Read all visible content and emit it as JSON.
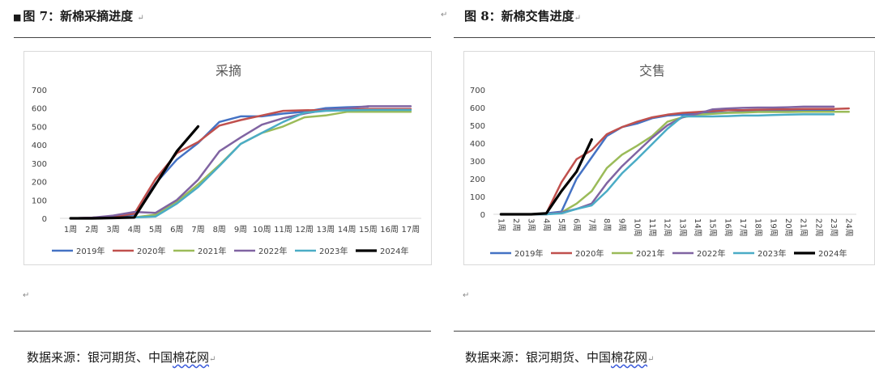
{
  "figures": [
    {
      "caption": "图 7：新棉采摘进度",
      "source_prefix": "数据来源：银河期货、中国",
      "source_underlined": "棉花网",
      "chart_data": {
        "type": "line",
        "title": "采摘",
        "categories": [
          "1周",
          "2周",
          "3周",
          "4周",
          "5周",
          "6周",
          "7周",
          "8周",
          "9周",
          "10周",
          "11周",
          "12周",
          "13周",
          "14周",
          "15周",
          "16周",
          "17周"
        ],
        "ylim": [
          0,
          700
        ],
        "yticks": [
          0,
          100,
          200,
          300,
          400,
          500,
          600,
          700
        ],
        "x_label_rotation": "horizontal",
        "grid": false,
        "legend_position": "bottom",
        "series": [
          {
            "name": "2019年",
            "color": "#4472c4",
            "values": [
              0,
              3,
              10,
              20,
              190,
              320,
              410,
              525,
              555,
              555,
              570,
              580,
              600,
              605,
              608,
              null,
              null
            ]
          },
          {
            "name": "2020年",
            "color": "#c0504d",
            "values": [
              0,
              3,
              10,
              25,
              215,
              355,
              415,
              505,
              535,
              560,
              585,
              588,
              590,
              592,
              595,
              595,
              595
            ]
          },
          {
            "name": "2021年",
            "color": "#9bbb59",
            "values": [
              0,
              0,
              2,
              5,
              20,
              90,
              185,
              290,
              405,
              465,
              500,
              550,
              560,
              580,
              580,
              580,
              580
            ]
          },
          {
            "name": "2022年",
            "color": "#8064a2",
            "values": [
              0,
              3,
              15,
              35,
              30,
              100,
              210,
              365,
              440,
              510,
              545,
              570,
              590,
              598,
              610,
              610,
              610
            ]
          },
          {
            "name": "2023年",
            "color": "#4bacc6",
            "values": [
              0,
              0,
              2,
              5,
              10,
              80,
              170,
              285,
              405,
              465,
              525,
              575,
              585,
              588,
              590,
              590,
              590
            ]
          },
          {
            "name": "2024年",
            "color": "#000000",
            "values": [
              0,
              0,
              2,
              5,
              185,
              365,
              500,
              null,
              null,
              null,
              null,
              null,
              null,
              null,
              null,
              null,
              null
            ]
          }
        ]
      }
    },
    {
      "caption": "图 8：新棉交售进度",
      "source_prefix": "数据来源：银河期货、中国",
      "source_underlined": "棉花网",
      "chart_data": {
        "type": "line",
        "title": "交售",
        "categories": [
          "1周",
          "2周",
          "3周",
          "4周",
          "5周",
          "6周",
          "7周",
          "8周",
          "9周",
          "10周",
          "11周",
          "12周",
          "13周",
          "14周",
          "15周",
          "16周",
          "17周",
          "18周",
          "19周",
          "20周",
          "21周",
          "22周",
          "23周",
          "24周"
        ],
        "ylim": [
          0,
          700
        ],
        "yticks": [
          0,
          100,
          200,
          300,
          400,
          500,
          600,
          700
        ],
        "x_label_rotation": "vertical",
        "grid": false,
        "legend_position": "bottom",
        "series": [
          {
            "name": "2019年",
            "color": "#4472c4",
            "values": [
              0,
              0,
              0,
              5,
              15,
              200,
              320,
              440,
              490,
              510,
              540,
              555,
              560,
              565,
              570,
              572,
              575,
              578,
              580,
              582,
              585,
              585,
              585,
              null
            ]
          },
          {
            "name": "2020年",
            "color": "#c0504d",
            "values": [
              0,
              0,
              0,
              5,
              180,
              310,
              360,
              450,
              490,
              520,
              545,
              560,
              570,
              575,
              580,
              585,
              585,
              588,
              590,
              590,
              592,
              592,
              592,
              595
            ]
          },
          {
            "name": "2021年",
            "color": "#9bbb59",
            "values": [
              0,
              0,
              0,
              0,
              10,
              60,
              130,
              260,
              335,
              385,
              440,
              520,
              545,
              560,
              565,
              570,
              572,
              575,
              575,
              575,
              576,
              576,
              576,
              576
            ]
          },
          {
            "name": "2022年",
            "color": "#8064a2",
            "values": [
              0,
              0,
              0,
              0,
              10,
              30,
              60,
              175,
              270,
              350,
              430,
              500,
              545,
              565,
              590,
              595,
              598,
              600,
              600,
              602,
              605,
              605,
              605,
              null
            ]
          },
          {
            "name": "2023年",
            "color": "#4bacc6",
            "values": [
              0,
              0,
              0,
              0,
              5,
              30,
              50,
              130,
              230,
              310,
              395,
              480,
              550,
              550,
              550,
              552,
              555,
              555,
              558,
              560,
              562,
              562,
              562,
              null
            ]
          },
          {
            "name": "2024年",
            "color": "#000000",
            "values": [
              0,
              0,
              0,
              5,
              130,
              240,
              420,
              null,
              null,
              null,
              null,
              null,
              null,
              null,
              null,
              null,
              null,
              null,
              null,
              null,
              null,
              null,
              null,
              null
            ]
          }
        ]
      }
    }
  ]
}
